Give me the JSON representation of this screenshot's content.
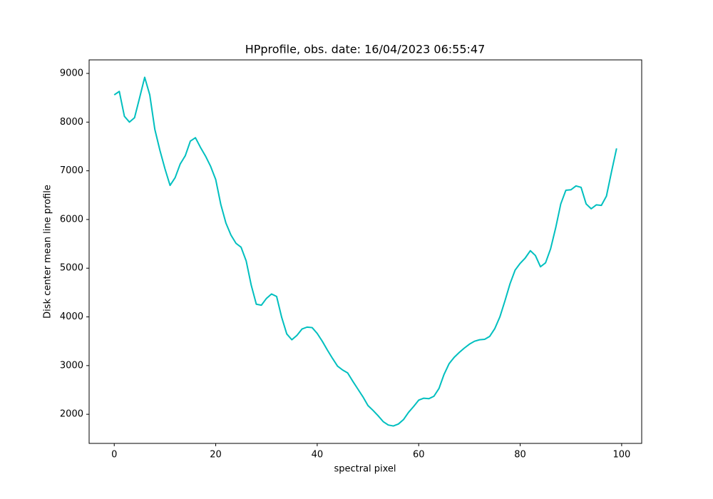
{
  "chart_data": {
    "type": "line",
    "title": "HPprofile, obs. date: 16/04/2023 06:55:47",
    "xlabel": "spectral pixel",
    "ylabel": "Disk center mean line profile",
    "x": [
      0,
      1,
      2,
      3,
      4,
      5,
      6,
      7,
      8,
      9,
      10,
      11,
      12,
      13,
      14,
      15,
      16,
      17,
      18,
      19,
      20,
      21,
      22,
      23,
      24,
      25,
      26,
      27,
      28,
      29,
      30,
      31,
      32,
      33,
      34,
      35,
      36,
      37,
      38,
      39,
      40,
      41,
      42,
      43,
      44,
      45,
      46,
      47,
      48,
      49,
      50,
      51,
      52,
      53,
      54,
      55,
      56,
      57,
      58,
      59,
      60,
      61,
      62,
      63,
      64,
      65,
      66,
      67,
      68,
      69,
      70,
      71,
      72,
      73,
      74,
      75,
      76,
      77,
      78,
      79,
      80,
      81,
      82,
      83,
      84,
      85,
      86,
      87,
      88,
      89,
      90,
      91,
      92,
      93,
      94,
      95,
      96,
      97,
      98,
      99
    ],
    "series": [
      {
        "color": "#00bfbf",
        "values": [
          8560,
          8630,
          8120,
          8000,
          8090,
          8500,
          8920,
          8560,
          7850,
          7420,
          7040,
          6700,
          6860,
          7140,
          7310,
          7610,
          7680,
          7480,
          7300,
          7090,
          6820,
          6310,
          5930,
          5680,
          5510,
          5430,
          5150,
          4650,
          4260,
          4240,
          4380,
          4470,
          4420,
          3990,
          3650,
          3530,
          3620,
          3750,
          3790,
          3780,
          3660,
          3500,
          3320,
          3150,
          2990,
          2910,
          2850,
          2680,
          2520,
          2360,
          2180,
          2080,
          1970,
          1850,
          1780,
          1760,
          1800,
          1890,
          2040,
          2160,
          2290,
          2330,
          2320,
          2370,
          2530,
          2820,
          3040,
          3170,
          3270,
          3360,
          3440,
          3500,
          3530,
          3540,
          3600,
          3760,
          4000,
          4330,
          4680,
          4960,
          5100,
          5210,
          5360,
          5260,
          5030,
          5110,
          5400,
          5830,
          6320,
          6600,
          6610,
          6690,
          6660,
          6320,
          6220,
          6300,
          6290,
          6480,
          6980,
          7460
        ]
      }
    ],
    "xlim": [
      -4.95,
      103.95
    ],
    "xticks": [
      0,
      20,
      40,
      60,
      80,
      100
    ],
    "ylim": [
      1402,
      9278
    ],
    "yticks": [
      2000,
      3000,
      4000,
      5000,
      6000,
      7000,
      8000,
      9000
    ]
  }
}
